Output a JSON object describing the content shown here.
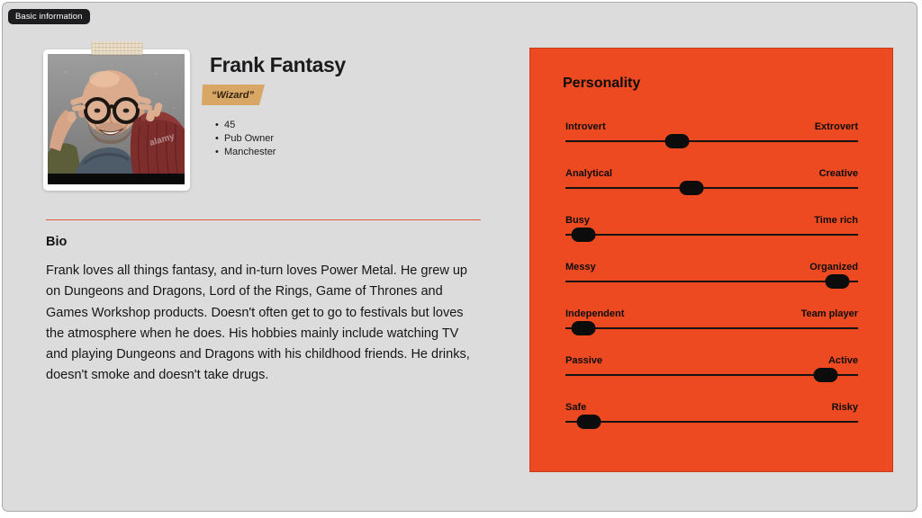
{
  "page": {
    "badge": "Basic information",
    "background_color": "#dcdcdc",
    "badge_color": "#1d1d1f"
  },
  "persona": {
    "name": "Frank Fantasy",
    "role": "“Wizard”",
    "role_highlight_color": "#d9a765",
    "details": [
      "45",
      "Pub Owner",
      "Manchester"
    ],
    "photo_watermark": "alamy"
  },
  "bio": {
    "heading": "Bio",
    "divider_color": "#e0593b",
    "text": "Frank loves all things fantasy, and in-turn loves Power Metal. He grew up on Dungeons and Dragons, Lord of the Rings, Game of Thrones and Games Workshop products. Doesn't often get to go to festivals but loves the atmosphere when he does. His hobbies mainly include watching TV and playing Dungeons and Dragons with his childhood friends. He drinks, doesn't smoke and doesn't take drugs."
  },
  "personality": {
    "heading": "Personality",
    "accent_color": "#ee4a21",
    "sliders": [
      {
        "left": "Introvert",
        "right": "Extrovert",
        "value": 38
      },
      {
        "left": "Analytical",
        "right": "Creative",
        "value": 43
      },
      {
        "left": "Busy",
        "right": "Time rich",
        "value": 6
      },
      {
        "left": "Messy",
        "right": "Organized",
        "value": 93
      },
      {
        "left": "Independent",
        "right": "Team player",
        "value": 6
      },
      {
        "left": "Passive",
        "right": "Active",
        "value": 89
      },
      {
        "left": "Safe",
        "right": "Risky",
        "value": 8
      }
    ]
  }
}
